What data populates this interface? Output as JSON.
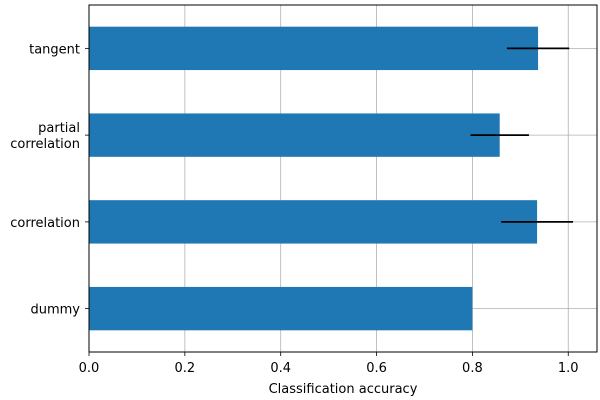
{
  "chart_data": {
    "type": "bar",
    "orientation": "horizontal",
    "categories": [
      "dummy",
      "correlation",
      "partial\ncorrelation",
      "tangent"
    ],
    "values": [
      0.8,
      0.935,
      0.857,
      0.937
    ],
    "errors": [
      0.0,
      0.075,
      0.061,
      0.065
    ],
    "xlabel": "Classification accuracy",
    "ylabel": "",
    "xlim": [
      0.0,
      1.06
    ],
    "xticks": [
      0.0,
      0.2,
      0.4,
      0.6,
      0.8,
      1.0
    ],
    "xtick_labels": [
      "0.0",
      "0.2",
      "0.4",
      "0.6",
      "0.8",
      "1.0"
    ],
    "grid": true,
    "bar_color": "#1f77b4",
    "error_color": "#000000"
  }
}
